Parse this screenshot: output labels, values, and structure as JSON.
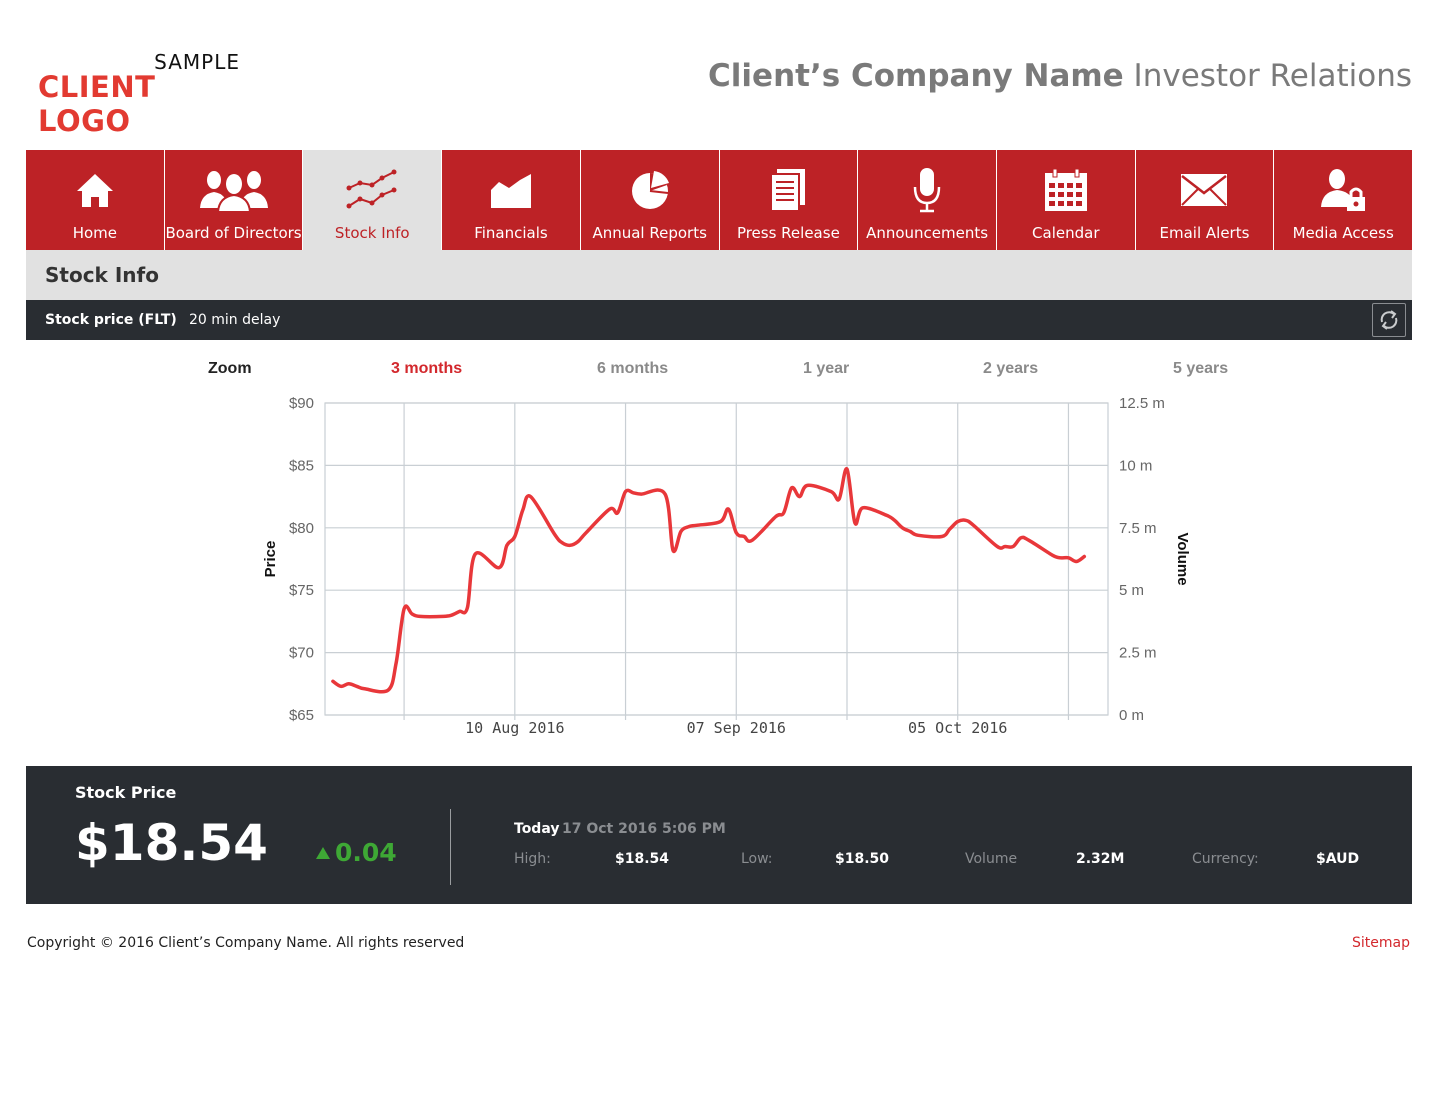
{
  "logo": {
    "line1": "SAMPLE",
    "line2": "CLIENT LOGO"
  },
  "header": {
    "company": "Client’s Company Name",
    "suffix": " Investor Relations"
  },
  "nav": [
    {
      "label": "Home",
      "icon": "home-icon"
    },
    {
      "label": "Board of Directors",
      "icon": "people-icon"
    },
    {
      "label": "Stock Info",
      "icon": "stock-chart-icon",
      "active": true
    },
    {
      "label": "Financials",
      "icon": "area-chart-icon"
    },
    {
      "label": "Annual Reports",
      "icon": "pie-chart-icon"
    },
    {
      "label": "Press Release",
      "icon": "document-icon"
    },
    {
      "label": "Announcements",
      "icon": "microphone-icon"
    },
    {
      "label": "Calendar",
      "icon": "calendar-icon"
    },
    {
      "label": "Email Alerts",
      "icon": "envelope-icon"
    },
    {
      "label": "Media Access",
      "icon": "user-lock-icon"
    }
  ],
  "section": {
    "title": "Stock Info"
  },
  "price_bar": {
    "ticker": "Stock price (FLT)",
    "delay": "20 min delay",
    "refresh_icon": "refresh-icon"
  },
  "zoom": {
    "label": "Zoom",
    "options": [
      "3 months",
      "6 months",
      "1 year",
      "2 years",
      "5 years"
    ],
    "active": "3 months"
  },
  "colors": {
    "brand_red": "#bd2226",
    "accent_red": "#d3282d",
    "dark": "#292d32",
    "up_green": "#3ea835",
    "line": "#e8373a"
  },
  "chart_data": {
    "type": "line",
    "ylabel": "Price",
    "y2label": "Volume",
    "ylim": [
      65,
      90
    ],
    "y2lim": [
      0,
      12.5
    ],
    "yticks": [
      "$90",
      "$85",
      "$80",
      "$75",
      "$70",
      "$65"
    ],
    "y2ticks": [
      "12.5 m",
      "10 m",
      "7.5 m",
      "5 m",
      "2.5 m",
      "0 m"
    ],
    "xticks": [
      "10 Aug 2016",
      "07 Sep 2016",
      "05 Oct 2016"
    ],
    "xlim": [
      "2016-07-17",
      "2016-10-24"
    ],
    "grid": true,
    "series": [
      {
        "x": [
          "2016-07-18",
          "2016-07-19",
          "2016-07-20",
          "2016-07-21",
          "2016-07-22",
          "2016-07-25",
          "2016-07-26",
          "2016-07-27",
          "2016-07-28",
          "2016-07-29",
          "2016-08-01",
          "2016-08-02",
          "2016-08-03",
          "2016-08-04",
          "2016-08-05",
          "2016-08-08",
          "2016-08-09",
          "2016-08-10",
          "2016-08-11",
          "2016-08-12",
          "2016-08-15",
          "2016-08-16",
          "2016-08-17",
          "2016-08-18",
          "2016-08-19",
          "2016-08-22",
          "2016-08-23",
          "2016-08-24",
          "2016-08-25",
          "2016-08-26",
          "2016-08-29",
          "2016-08-30",
          "2016-08-31",
          "2016-09-01",
          "2016-09-02",
          "2016-09-05",
          "2016-09-06",
          "2016-09-07",
          "2016-09-08",
          "2016-09-09",
          "2016-09-12",
          "2016-09-13",
          "2016-09-14",
          "2016-09-15",
          "2016-09-16",
          "2016-09-19",
          "2016-09-20",
          "2016-09-21",
          "2016-09-22",
          "2016-09-23",
          "2016-09-26",
          "2016-09-27",
          "2016-09-28",
          "2016-09-29",
          "2016-09-30",
          "2016-10-03",
          "2016-10-04",
          "2016-10-05",
          "2016-10-06",
          "2016-10-07",
          "2016-10-10",
          "2016-10-11",
          "2016-10-12",
          "2016-10-13",
          "2016-10-14",
          "2016-10-17",
          "2016-10-18",
          "2016-10-19",
          "2016-10-20",
          "2016-10-21"
        ],
        "values": [
          67.7,
          67.3,
          67.5,
          67.3,
          67.1,
          67.0,
          69.2,
          73.5,
          73.1,
          72.9,
          72.9,
          73.0,
          73.3,
          73.6,
          77.9,
          76.8,
          78.6,
          79.3,
          81.4,
          82.5,
          79.5,
          78.8,
          78.6,
          78.9,
          79.6,
          81.5,
          81.2,
          82.9,
          82.8,
          82.7,
          82.7,
          78.2,
          79.7,
          80.1,
          80.2,
          80.5,
          81.5,
          79.6,
          79.3,
          79.0,
          80.9,
          81.2,
          83.2,
          82.5,
          83.4,
          82.9,
          82.3,
          84.7,
          80.4,
          81.6,
          81.0,
          80.6,
          80.0,
          79.7,
          79.4,
          79.3,
          79.9,
          80.5,
          80.6,
          80.2,
          78.5,
          78.5,
          78.5,
          79.2,
          79.0,
          77.8,
          77.6,
          77.6,
          77.3,
          77.7
        ]
      }
    ]
  },
  "summary": {
    "title": "Stock Price",
    "price": "$18.54",
    "change": "0.04",
    "today_label": "Today",
    "date": "17 Oct 2016 5:06 PM",
    "high_label": "High:",
    "high": "$18.54",
    "low_label": "Low:",
    "low": "$18.50",
    "volume_label": "Volume",
    "volume": "2.32M",
    "currency_label": "Currency:",
    "currency": "$AUD"
  },
  "footer": {
    "copyright": "Copyright © 2016 Client’s Company Name. All rights reserved",
    "sitemap": "Sitemap"
  }
}
